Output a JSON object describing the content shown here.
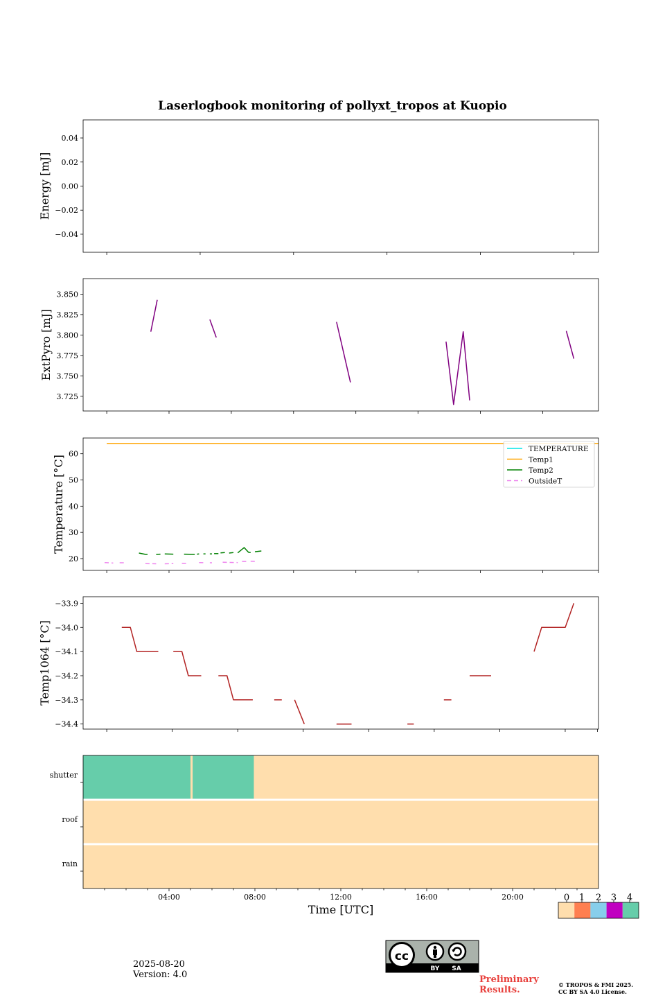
{
  "title": "Laserlogbook monitoring of pollyxt_tropos at Kuopio",
  "footer": {
    "date": "2025-08-20",
    "version": "Version: 4.0",
    "preliminary": [
      "Preliminary",
      "Results."
    ],
    "copyright": [
      "© TROPOS & FMI 2025.",
      "CC BY SA 4.0 License."
    ],
    "license_badge": {
      "icon": "cc-by-sa-icon",
      "labels": [
        "BY",
        "SA"
      ]
    }
  },
  "chart_data": [
    {
      "id": "energy",
      "type": "line",
      "ylabel": "Energy [mJ]",
      "xlim": [
        0,
        24
      ],
      "ylim": [
        -0.055,
        0.055
      ],
      "yticks": [
        0.04,
        0.02,
        0.0,
        -0.02,
        -0.04
      ],
      "ytick_labels": [
        "0.04",
        "0.02",
        "0.00",
        "−0.02",
        "−0.04"
      ],
      "xticks": [
        1.1,
        5.45,
        9.8,
        14.15,
        18.5,
        22.85
      ],
      "series": []
    },
    {
      "id": "extpyro",
      "type": "line",
      "ylabel": "ExtPyro [mJ]",
      "xlim": [
        0,
        24
      ],
      "ylim": [
        3.707,
        3.869
      ],
      "yticks": [
        3.85,
        3.825,
        3.8,
        3.775,
        3.75,
        3.725
      ],
      "ytick_labels": [
        "3.850",
        "3.825",
        "3.800",
        "3.775",
        "3.750",
        "3.725"
      ],
      "xticks": [
        1.1,
        4.0,
        6.9,
        9.8,
        12.7,
        15.6,
        18.5,
        21.4
      ],
      "series": [
        {
          "color": "#800080",
          "segments": [
            [
              [
                3.15,
                3.804
              ],
              [
                3.45,
                3.843
              ]
            ],
            [
              [
                5.9,
                3.819
              ],
              [
                6.2,
                3.797
              ]
            ],
            [
              [
                11.8,
                3.816
              ],
              [
                12.45,
                3.742
              ]
            ],
            [
              [
                16.9,
                3.792
              ],
              [
                17.25,
                3.715
              ],
              [
                17.7,
                3.804
              ],
              [
                18.0,
                3.72
              ]
            ],
            [
              [
                22.5,
                3.805
              ],
              [
                22.85,
                3.771
              ]
            ]
          ]
        }
      ]
    },
    {
      "id": "temperature",
      "type": "line",
      "ylabel": "Temperature [°C]",
      "xlim": [
        0,
        24
      ],
      "ylim": [
        15.5,
        66.0
      ],
      "yticks": [
        60,
        50,
        40,
        30,
        20
      ],
      "ytick_labels": [
        "60",
        "50",
        "40",
        "30",
        "20"
      ],
      "xticks": [
        1.1,
        4.0,
        6.9,
        9.8,
        12.7,
        15.6,
        18.5,
        21.4,
        24.0
      ],
      "legend": {
        "placement": "top-right",
        "entries": [
          "TEMPERATURE",
          "Temp1",
          "Temp2",
          "OutsideT"
        ]
      },
      "series": [
        {
          "name": "TEMPERATURE",
          "color": "#00e5e5",
          "dash": "",
          "segments": []
        },
        {
          "name": "Temp1",
          "color": "#ffa500",
          "dash": "",
          "segments": [
            [
              [
                1.1,
                63.9
              ],
              [
                24.0,
                63.9
              ]
            ]
          ]
        },
        {
          "name": "Temp2",
          "color": "#008000",
          "dash": "",
          "segments": [
            [
              [
                2.6,
                22.1
              ],
              [
                2.9,
                21.6
              ],
              [
                3.0,
                21.6
              ]
            ],
            [
              [
                3.4,
                21.6
              ],
              [
                3.6,
                21.7
              ]
            ],
            [
              [
                3.8,
                21.8
              ],
              [
                4.2,
                21.7
              ]
            ],
            [
              [
                4.7,
                21.7
              ],
              [
                5.2,
                21.6
              ]
            ],
            [
              [
                5.3,
                21.7
              ],
              [
                5.4,
                21.8
              ]
            ],
            [
              [
                5.6,
                21.8
              ],
              [
                5.7,
                21.8
              ]
            ],
            [
              [
                5.9,
                21.8
              ],
              [
                6.0,
                21.8
              ]
            ],
            [
              [
                6.1,
                21.9
              ],
              [
                6.3,
                21.9
              ]
            ],
            [
              [
                6.4,
                22.2
              ],
              [
                6.6,
                22.3
              ]
            ],
            [
              [
                6.8,
                22.1
              ],
              [
                7.0,
                22.3
              ]
            ],
            [
              [
                7.2,
                22.2
              ],
              [
                7.5,
                24.2
              ],
              [
                7.7,
                22.4
              ],
              [
                7.8,
                22.3
              ]
            ],
            [
              [
                8.0,
                22.6
              ],
              [
                8.3,
                22.9
              ]
            ]
          ]
        },
        {
          "name": "OutsideT",
          "color": "#ee82ee",
          "dash": "6,4",
          "segments": [
            [
              [
                1.0,
                18.5
              ],
              [
                1.4,
                18.3
              ]
            ],
            [
              [
                1.7,
                18.4
              ],
              [
                2.0,
                18.4
              ]
            ],
            [
              [
                2.9,
                18.1
              ],
              [
                3.4,
                18.0
              ]
            ],
            [
              [
                3.8,
                18.0
              ],
              [
                4.2,
                18.1
              ]
            ],
            [
              [
                4.6,
                18.2
              ],
              [
                4.9,
                18.1
              ]
            ],
            [
              [
                5.4,
                18.5
              ],
              [
                5.7,
                18.4
              ]
            ],
            [
              [
                5.9,
                18.4
              ],
              [
                6.0,
                18.4
              ]
            ],
            [
              [
                6.5,
                18.6
              ],
              [
                7.2,
                18.5
              ]
            ],
            [
              [
                7.4,
                18.9
              ],
              [
                7.6,
                18.9
              ]
            ],
            [
              [
                7.8,
                19.0
              ],
              [
                8.1,
                18.9
              ]
            ]
          ]
        }
      ]
    },
    {
      "id": "temp1064",
      "type": "line",
      "ylabel": "Temp1064 [°C]",
      "xlim": [
        0,
        24
      ],
      "ylim": [
        -34.421,
        -33.873
      ],
      "yticks": [
        -33.9,
        -34.0,
        -34.1,
        -34.2,
        -34.3,
        -34.4
      ],
      "ytick_labels": [
        "−33.9",
        "−34.0",
        "−34.1",
        "−34.2",
        "−34.3",
        "−34.4"
      ],
      "xticks": [
        1.1,
        4.15,
        7.2,
        10.25,
        13.3,
        16.35,
        19.4,
        22.45,
        23.95
      ],
      "series": [
        {
          "color": "#b22222",
          "segments": [
            [
              [
                1.8,
                -34.0
              ],
              [
                2.2,
                -34.0
              ],
              [
                2.5,
                -34.1
              ],
              [
                3.5,
                -34.1
              ]
            ],
            [
              [
                4.2,
                -34.1
              ],
              [
                4.6,
                -34.1
              ],
              [
                4.9,
                -34.2
              ],
              [
                5.5,
                -34.2
              ]
            ],
            [
              [
                6.3,
                -34.2
              ],
              [
                6.7,
                -34.2
              ],
              [
                7.0,
                -34.3
              ],
              [
                7.9,
                -34.3
              ]
            ],
            [
              [
                8.9,
                -34.3
              ],
              [
                9.25,
                -34.3
              ]
            ],
            [
              [
                9.85,
                -34.3
              ],
              [
                10.3,
                -34.4
              ]
            ],
            [
              [
                11.8,
                -34.4
              ],
              [
                12.5,
                -34.4
              ]
            ],
            [
              [
                15.1,
                -34.4
              ],
              [
                15.4,
                -34.4
              ]
            ],
            [
              [
                16.8,
                -34.3
              ],
              [
                17.15,
                -34.3
              ]
            ],
            [
              [
                18.0,
                -34.2
              ],
              [
                19.0,
                -34.2
              ]
            ],
            [
              [
                21.0,
                -34.1
              ],
              [
                21.35,
                -34.0
              ],
              [
                22.45,
                -34.0
              ],
              [
                22.85,
                -33.9
              ]
            ]
          ]
        }
      ]
    },
    {
      "id": "status",
      "type": "heatmap",
      "xlabel": "Time [UTC]",
      "xlim": [
        0,
        24
      ],
      "rows": [
        "shutter",
        "roof",
        "rain"
      ],
      "xticks": [
        4,
        8,
        12,
        16,
        20
      ],
      "xtick_labels": [
        "04:00",
        "08:00",
        "12:00",
        "16:00",
        "20:00"
      ],
      "default_level": 0,
      "cells": [
        {
          "row": "shutter",
          "x0": 0,
          "x1": 5.0,
          "level": 4
        },
        {
          "row": "shutter",
          "x0": 5.1,
          "x1": 7.95,
          "level": 4
        }
      ],
      "colorbar": {
        "labels": [
          "0",
          "1",
          "2",
          "3",
          "4"
        ],
        "colors": [
          "#ffdead",
          "#ff7f50",
          "#87ceeb",
          "#c000c0",
          "#66cdaa"
        ]
      }
    }
  ]
}
